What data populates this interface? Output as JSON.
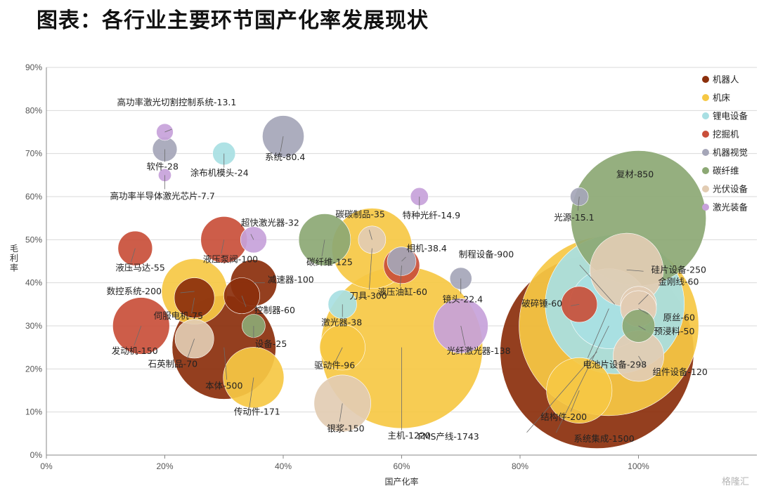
{
  "title": "图表：各行业主要环节国产化率发展现状",
  "watermark": "格隆汇",
  "chart_data": {
    "type": "scatter",
    "xlabel": "国产化率",
    "ylabel": "毛利率",
    "xlim": [
      0,
      1.2
    ],
    "ylim": [
      0,
      0.9
    ],
    "x_ticks": [
      "0%",
      "20%",
      "40%",
      "60%",
      "80%",
      "100%"
    ],
    "y_ticks": [
      "0%",
      "10%",
      "20%",
      "30%",
      "40%",
      "50%",
      "60%",
      "70%",
      "80%",
      "90%"
    ],
    "legend_position": "right",
    "series": [
      {
        "name": "机器人",
        "color": "#8B2F0C",
        "points": [
          {
            "label": "本体-500",
            "x": 0.3,
            "y": 0.25,
            "size": 500
          },
          {
            "label": "减速器-100",
            "x": 0.35,
            "y": 0.4,
            "size": 100
          },
          {
            "label": "控制器-60",
            "x": 0.33,
            "y": 0.37,
            "size": 60
          },
          {
            "label": "伺服电机-75",
            "x": 0.25,
            "y": 0.365,
            "size": 75
          },
          {
            "label": "FMS产线-1743",
            "x": 0.93,
            "y": 0.24,
            "size": 1743
          }
        ]
      },
      {
        "name": "机床",
        "color": "#F6C844",
        "points": [
          {
            "label": "数控系统-200",
            "x": 0.25,
            "y": 0.38,
            "size": 200
          },
          {
            "label": "传动件-171",
            "x": 0.35,
            "y": 0.18,
            "size": 171
          },
          {
            "label": "刀具-300",
            "x": 0.55,
            "y": 0.48,
            "size": 300
          },
          {
            "label": "驱动件-96",
            "x": 0.5,
            "y": 0.25,
            "size": 96
          },
          {
            "label": "主机-1220",
            "x": 0.6,
            "y": 0.25,
            "size": 1220
          },
          {
            "label": "结构件-200",
            "x": 0.9,
            "y": 0.15,
            "size": 200
          },
          {
            "label": "系统集成-1500",
            "x": 0.95,
            "y": 0.3,
            "size": 1500
          }
        ]
      },
      {
        "name": "锂电设备",
        "color": "#A8DFE3",
        "points": [
          {
            "label": "涂布机模头-24",
            "x": 0.3,
            "y": 0.7,
            "size": 24
          },
          {
            "label": "激光器-38",
            "x": 0.5,
            "y": 0.35,
            "size": 38
          },
          {
            "label": "电池片设备-298",
            "x": 0.95,
            "y": 0.34,
            "size": 298
          },
          {
            "label": "制程设备-900",
            "x": 0.96,
            "y": 0.35,
            "size": 900
          }
        ]
      },
      {
        "name": "挖掘机",
        "color": "#C94F3A",
        "points": [
          {
            "label": "液压马达-55",
            "x": 0.15,
            "y": 0.48,
            "size": 55
          },
          {
            "label": "液压泵阀-100",
            "x": 0.3,
            "y": 0.5,
            "size": 100
          },
          {
            "label": "液压油缸-60",
            "x": 0.6,
            "y": 0.44,
            "size": 60
          },
          {
            "label": "发动机-150",
            "x": 0.16,
            "y": 0.3,
            "size": 150
          },
          {
            "label": "破碎锤-60",
            "x": 0.9,
            "y": 0.35,
            "size": 60
          }
        ]
      },
      {
        "name": "机器视觉",
        "color": "#A5A6B8",
        "points": [
          {
            "label": "软件-28",
            "x": 0.2,
            "y": 0.71,
            "size": 28
          },
          {
            "label": "系统-80.4",
            "x": 0.4,
            "y": 0.74,
            "size": 80.4
          },
          {
            "label": "相机-38.4",
            "x": 0.6,
            "y": 0.45,
            "size": 38.4
          },
          {
            "label": "镜头-22.4",
            "x": 0.7,
            "y": 0.41,
            "size": 22.4
          },
          {
            "label": "光源-15.1",
            "x": 0.9,
            "y": 0.6,
            "size": 15.1
          }
        ]
      },
      {
        "name": "碳纤维",
        "color": "#8CA874",
        "points": [
          {
            "label": "碳纤维-125",
            "x": 0.47,
            "y": 0.5,
            "size": 125
          },
          {
            "label": "设备-25",
            "x": 0.35,
            "y": 0.3,
            "size": 25
          },
          {
            "label": "复材-850",
            "x": 1.0,
            "y": 0.55,
            "size": 850
          },
          {
            "label": "预浸料-50",
            "x": 1.0,
            "y": 0.3,
            "size": 50
          }
        ]
      },
      {
        "name": "光伏设备",
        "color": "#E2CCB3",
        "points": [
          {
            "label": "石英制品-70",
            "x": 0.25,
            "y": 0.27,
            "size": 70
          },
          {
            "label": "碳碳制品-35",
            "x": 0.55,
            "y": 0.5,
            "size": 35
          },
          {
            "label": "银浆-150",
            "x": 0.5,
            "y": 0.12,
            "size": 150
          },
          {
            "label": "硅片设备-250",
            "x": 0.98,
            "y": 0.43,
            "size": 250
          },
          {
            "label": "金刚线-60",
            "x": 1.0,
            "y": 0.35,
            "size": 60
          },
          {
            "label": "原丝-60",
            "x": 1.0,
            "y": 0.34,
            "size": 60
          },
          {
            "label": "组件设备-120",
            "x": 1.0,
            "y": 0.23,
            "size": 120
          }
        ]
      },
      {
        "name": "激光装备",
        "color": "#C7A2DA",
        "points": [
          {
            "label": "高功率激光切割控制系统-13.1",
            "x": 0.2,
            "y": 0.75,
            "size": 13.1
          },
          {
            "label": "高功率半导体激光芯片-7.7",
            "x": 0.2,
            "y": 0.65,
            "size": 7.7
          },
          {
            "label": "超快激光器-32",
            "x": 0.35,
            "y": 0.5,
            "size": 32
          },
          {
            "label": "特种光纤-14.9",
            "x": 0.63,
            "y": 0.6,
            "size": 14.9
          },
          {
            "label": "光纤激光器-138",
            "x": 0.7,
            "y": 0.3,
            "size": 138
          }
        ]
      }
    ]
  }
}
